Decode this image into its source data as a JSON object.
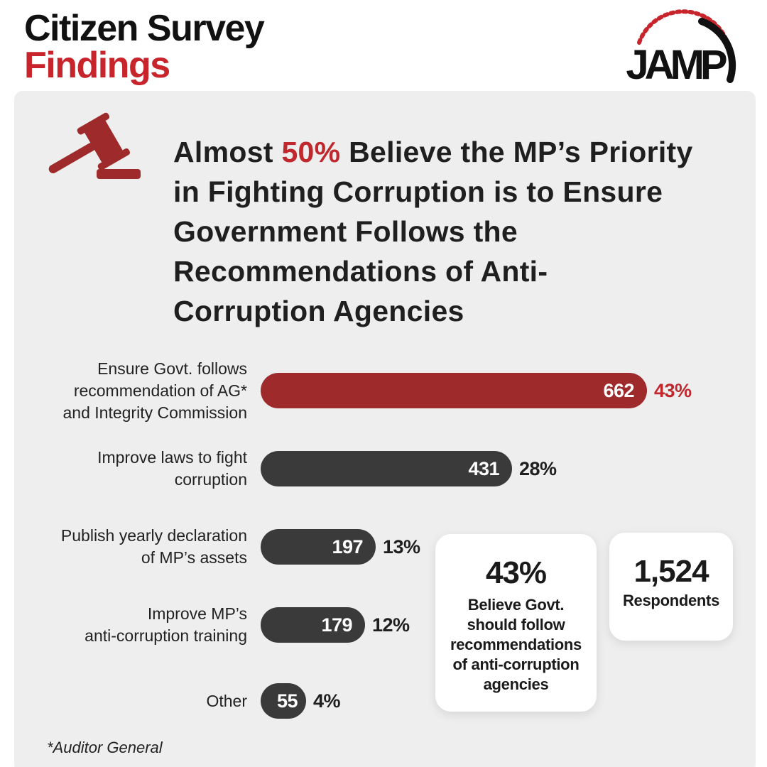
{
  "header": {
    "line1": "Citizen Survey",
    "line2": "Findings"
  },
  "logo": {
    "text": "JAMP"
  },
  "headline": {
    "pre": "Almost ",
    "highlight": "50%",
    "post": " Believe the MP’s Priority in Fighting Corruption is to Ensure Government Follows the Recommendations of Anti-Corruption Agencies"
  },
  "colors": {
    "accent": "#9e2a2b",
    "bar_dark": "#3a3a3a",
    "highlight_text": "#c0282e",
    "panel_bg": "#eeeeee"
  },
  "chart_data": {
    "type": "bar",
    "orientation": "horizontal",
    "categories": [
      "Ensure Govt. follows recommendation of AG* and Integrity Commission",
      "Improve laws to fight corruption",
      "Publish yearly declaration of MP’s assets",
      "Improve MP’s anti-corruption training",
      "Other"
    ],
    "label_lines": [
      [
        "Ensure Govt. follows",
        "recommendation of AG*",
        "and Integrity Commission"
      ],
      [
        "Improve laws to fight",
        "corruption"
      ],
      [
        "Publish yearly declaration",
        "of MP’s assets"
      ],
      [
        "Improve MP’s",
        "anti-corruption training"
      ],
      [
        "Other"
      ]
    ],
    "values": [
      662,
      431,
      197,
      179,
      55
    ],
    "value_labels": [
      "662",
      "431",
      "197",
      "179",
      "55"
    ],
    "percent_labels": [
      "43%",
      "28%",
      "13%",
      "12%",
      "4%"
    ],
    "highlight_index": 0,
    "xlim": [
      0,
      662
    ]
  },
  "cards": [
    {
      "value": "43%",
      "lines": [
        "Believe Govt.",
        "should follow",
        "recommendations",
        "of anti-corruption",
        "agencies"
      ]
    },
    {
      "value": "1,524",
      "lines": [
        "Respondents"
      ]
    }
  ],
  "footnote": "*Auditor General"
}
